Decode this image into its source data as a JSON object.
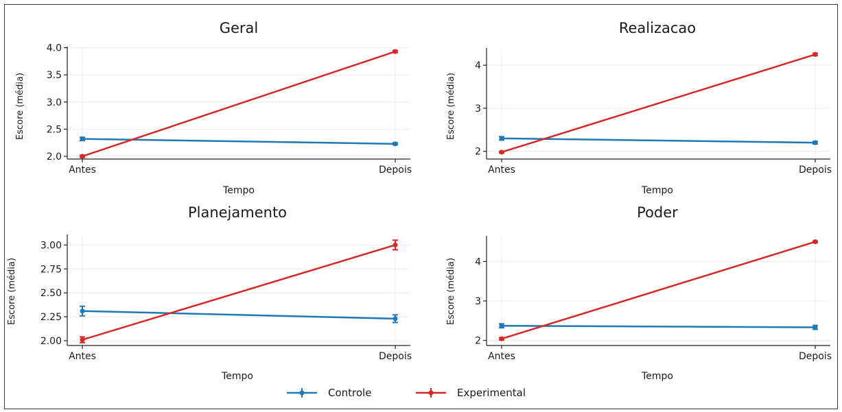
{
  "chart_data": {
    "type": "line",
    "legend": {
      "placement": "bottom-center",
      "entries": [
        {
          "name": "Controle",
          "color": "#1f77b4"
        },
        {
          "name": "Experimental",
          "color": "#d62728"
        }
      ]
    },
    "panels": [
      {
        "title": "Geral",
        "xlabel": "Tempo",
        "ylabel": "Escore (média)",
        "categories": [
          "Antes",
          "Depois"
        ],
        "ylim": [
          1.95,
          4.02
        ],
        "yticks": [
          2.0,
          2.5,
          3.0,
          3.5,
          4.0
        ],
        "ytick_labels": [
          "2.0",
          "2.5",
          "3.0",
          "3.5",
          "4.0"
        ],
        "grid": true,
        "series": [
          {
            "name": "Controle",
            "values": [
              2.32,
              2.23
            ],
            "errors": [
              0.03,
              0.02
            ]
          },
          {
            "name": "Experimental",
            "values": [
              2.0,
              3.93
            ],
            "errors": [
              0.02,
              0.02
            ]
          }
        ]
      },
      {
        "title": "Realizacao",
        "xlabel": "Tempo",
        "ylabel": "Escore (média)",
        "categories": [
          "Antes",
          "Depois"
        ],
        "ylim": [
          1.82,
          4.4
        ],
        "yticks": [
          2,
          3,
          4
        ],
        "ytick_labels": [
          "2",
          "3",
          "4"
        ],
        "grid": true,
        "series": [
          {
            "name": "Controle",
            "values": [
              2.3,
              2.2
            ],
            "errors": [
              0.04,
              0.03
            ]
          },
          {
            "name": "Experimental",
            "values": [
              1.98,
              4.25
            ],
            "errors": [
              0.02,
              0.03
            ]
          }
        ]
      },
      {
        "title": "Planejamento",
        "xlabel": "Tempo",
        "ylabel": "Escore (média)",
        "categories": [
          "Antes",
          "Depois"
        ],
        "ylim": [
          1.95,
          3.11
        ],
        "yticks": [
          2.0,
          2.25,
          2.5,
          2.75,
          3.0
        ],
        "ytick_labels": [
          "2.00",
          "2.25",
          "2.50",
          "2.75",
          "3.00"
        ],
        "grid": true,
        "series": [
          {
            "name": "Controle",
            "values": [
              2.31,
              2.23
            ],
            "errors": [
              0.05,
              0.04
            ]
          },
          {
            "name": "Experimental",
            "values": [
              2.01,
              3.0
            ],
            "errors": [
              0.03,
              0.05
            ]
          }
        ]
      },
      {
        "title": "Poder",
        "xlabel": "Tempo",
        "ylabel": "Escore (média)",
        "categories": [
          "Antes",
          "Depois"
        ],
        "ylim": [
          1.87,
          4.65
        ],
        "yticks": [
          2,
          3,
          4
        ],
        "ytick_labels": [
          "2",
          "3",
          "4"
        ],
        "grid": true,
        "series": [
          {
            "name": "Controle",
            "values": [
              2.37,
              2.33
            ],
            "errors": [
              0.05,
              0.05
            ]
          },
          {
            "name": "Experimental",
            "values": [
              2.04,
              4.5
            ],
            "errors": [
              0.03,
              0.02
            ]
          }
        ]
      }
    ]
  }
}
